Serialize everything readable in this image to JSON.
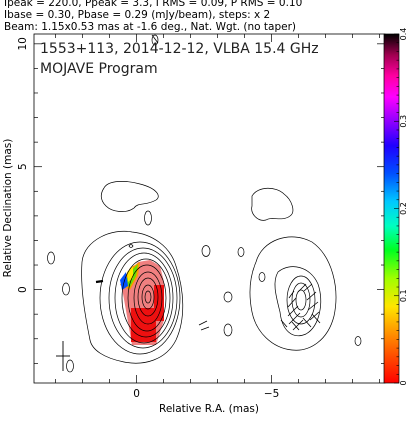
{
  "header": {
    "line1": "Ipeak = 220.0, Ppeak = 3.3, I RMS = 0.09, P RMS = 0.10",
    "line2": "Ibase = 0.30, Pbase = 0.29 (mJy/beam), steps: x 2",
    "line3": "Beam: 1.15x0.53 mas at -1.6 deg., Nat. Wgt. (no taper)"
  },
  "annotations": {
    "source": "1553+113, 2014-12-12, VLBA 15.4 GHz",
    "program": "MOJAVE Program"
  },
  "chart_data": {
    "type": "contour",
    "xlabel": "Relative R.A. (mas)",
    "ylabel": "Relative Declination (mas)",
    "xlim": [
      3.8,
      -9.2
    ],
    "ylim": [
      -3.8,
      10.4
    ],
    "x_ticks": [
      0,
      -5
    ],
    "x_tick_labels": [
      "0",
      "−5"
    ],
    "y_ticks": [
      0,
      5,
      10
    ],
    "y_tick_labels": [
      "0",
      "5",
      "10"
    ],
    "colorbar": {
      "range": [
        0,
        0.4
      ],
      "ticks": [
        0,
        0.1,
        0.2,
        0.3,
        0.4
      ],
      "tick_labels": [
        "0",
        "0.1",
        "0.2",
        "0.3",
        "0.4"
      ],
      "colormap": [
        "#ff0000",
        "#ff8000",
        "#ffff00",
        "#80ff00",
        "#00ff00",
        "#00ffcc",
        "#00ccff",
        "#0066ff",
        "#0000ff",
        "#8000ff",
        "#ff00ff",
        "#ff00a0",
        "#cc0066",
        "#000000"
      ]
    },
    "core": {
      "x": 0.0,
      "y": 0.0
    },
    "jet_component": {
      "x": -5.3,
      "y": 0.0
    },
    "contour_levels_mjy_per_beam": [
      0.3,
      0.6,
      1.2,
      2.4,
      4.8,
      9.6,
      19.2,
      38.4,
      76.8,
      153.6
    ],
    "beam": {
      "major_mas": 1.15,
      "minor_mas": 0.53,
      "pa_deg": -1.6
    }
  }
}
